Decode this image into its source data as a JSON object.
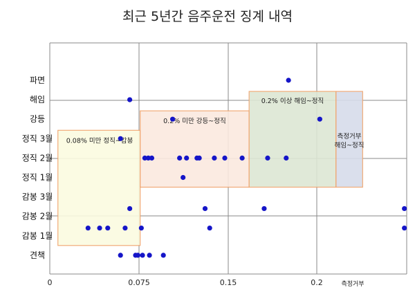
{
  "chart_data": {
    "type": "scatter",
    "title": "최근  5년간 음주운전 징계 내역",
    "categories": [
      "파면",
      "해임",
      "강등",
      "정직 3월",
      "정직 2월",
      "정직 1월",
      "감봉 3월",
      "감봉 2월",
      "감봉 1월",
      "견책"
    ],
    "x_ticks": [
      "0",
      "0.075",
      "0.15",
      "0.2"
    ],
    "x_extra_label": "측정거부",
    "xlim": [
      0,
      0.26
    ],
    "grid": true,
    "bands": [
      {
        "label": "0.08% 미만 정직~감봉",
        "x0": 0.007,
        "x1": 0.078,
        "y_top": "정직 3월",
        "y_bottom": "감봉 1월",
        "color": "#fbfbe0"
      },
      {
        "label": "0.2% 미만 강등~정직",
        "x0": 0.078,
        "x1": 0.172,
        "y_top": "강등",
        "y_bottom": "정직 1월",
        "color": "#fbe9df"
      },
      {
        "label": "0.2% 이상 해임~정직",
        "x0": 0.172,
        "x1": 0.247,
        "y_top": "해임",
        "y_bottom": "정직 1월",
        "color": "#dde7d4"
      },
      {
        "label_lines": [
          "측정거부",
          "해임~정직"
        ],
        "x0": 0.247,
        "x1": 0.27,
        "y_top": "해임",
        "y_bottom": "정직 1월",
        "color": "#d7dceb"
      }
    ],
    "points": [
      {
        "x": 0.206,
        "y": "파면"
      },
      {
        "x": 0.069,
        "y": "해임"
      },
      {
        "x": 0.106,
        "y": "강등"
      },
      {
        "x": 0.233,
        "y": "강등"
      },
      {
        "x": 0.061,
        "y": "정직 3월"
      },
      {
        "x": 0.082,
        "y": "정직 2월"
      },
      {
        "x": 0.085,
        "y": "정직 2월"
      },
      {
        "x": 0.088,
        "y": "정직 2월"
      },
      {
        "x": 0.112,
        "y": "정직 2월"
      },
      {
        "x": 0.118,
        "y": "정직 2월"
      },
      {
        "x": 0.127,
        "y": "정직 2월"
      },
      {
        "x": 0.129,
        "y": "정직 2월"
      },
      {
        "x": 0.142,
        "y": "정직 2월"
      },
      {
        "x": 0.151,
        "y": "정직 2월"
      },
      {
        "x": 0.166,
        "y": "정직 2월"
      },
      {
        "x": 0.188,
        "y": "정직 2월"
      },
      {
        "x": 0.204,
        "y": "정직 2월"
      },
      {
        "x": 0.115,
        "y": "정직 1월"
      },
      {
        "x": 0.069,
        "y": "감봉 2.5"
      },
      {
        "x": 0.134,
        "y": "감봉 2.5"
      },
      {
        "x": 0.185,
        "y": "감봉 2.5"
      },
      {
        "x": 0.306,
        "y": "감봉 2.5"
      },
      {
        "x": 0.033,
        "y": "감봉 1.5"
      },
      {
        "x": 0.043,
        "y": "감봉 1.5"
      },
      {
        "x": 0.05,
        "y": "감봉 1.5"
      },
      {
        "x": 0.065,
        "y": "감봉 1.5"
      },
      {
        "x": 0.079,
        "y": "감봉 1.5"
      },
      {
        "x": 0.138,
        "y": "감봉 1.5"
      },
      {
        "x": 0.306,
        "y": "감봉 1.5"
      },
      {
        "x": 0.061,
        "y": "견책"
      },
      {
        "x": 0.074,
        "y": "견책"
      },
      {
        "x": 0.076,
        "y": "견책"
      },
      {
        "x": 0.08,
        "y": "견책"
      },
      {
        "x": 0.086,
        "y": "견책"
      },
      {
        "x": 0.098,
        "y": "견책"
      }
    ],
    "point_color": "#1515c8"
  }
}
